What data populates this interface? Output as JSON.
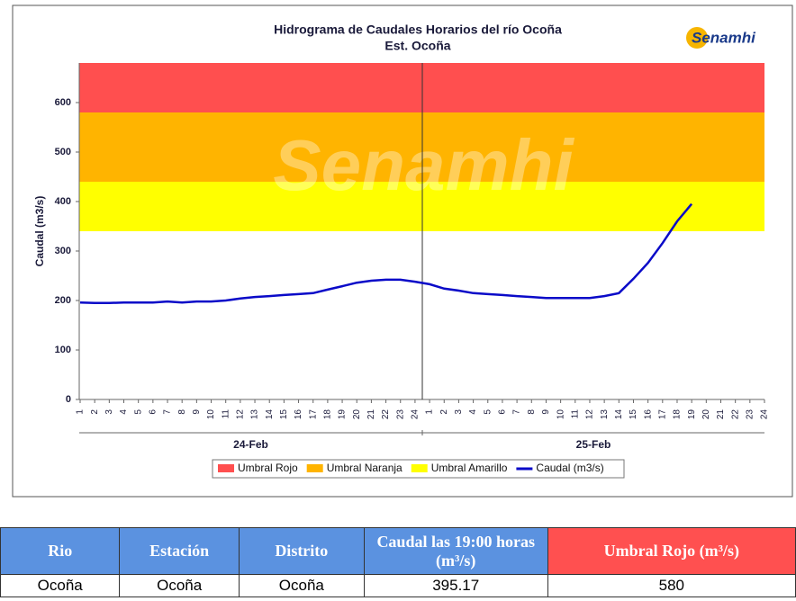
{
  "chart_data": {
    "type": "line",
    "title": "Hidrograma de Caudales Horarios del río Ocoña",
    "subtitle": "Est. Ocoña",
    "logo": "Senamhi",
    "watermark": "Senamhi",
    "y_label": "Caudal  (m3/s)",
    "categories": [
      1,
      2,
      3,
      4,
      5,
      6,
      7,
      8,
      9,
      10,
      11,
      12,
      13,
      14,
      15,
      16,
      17,
      18,
      19,
      20,
      21,
      22,
      23,
      24,
      1,
      2,
      3,
      4,
      5,
      6,
      7,
      8,
      9,
      10,
      11,
      12,
      13,
      14,
      15,
      16,
      17,
      18,
      19,
      20,
      21,
      22,
      23,
      24
    ],
    "groups": [
      {
        "label": "24-Feb",
        "span": [
          0,
          23
        ]
      },
      {
        "label": "25-Feb",
        "span": [
          24,
          47
        ]
      }
    ],
    "ylim": [
      0,
      680
    ],
    "yticks": [
      0,
      100,
      200,
      300,
      400,
      500,
      600
    ],
    "bands": [
      {
        "name": "Umbral Rojo",
        "color": "#ff4f4f",
        "range": [
          580,
          680
        ]
      },
      {
        "name": "Umbral Naranja",
        "color": "#ffb400",
        "range": [
          440,
          580
        ]
      },
      {
        "name": "Umbral Amarillo",
        "color": "#ffff00",
        "range": [
          340,
          440
        ]
      }
    ],
    "series": [
      {
        "name": "Caudal (m3/s)",
        "color": "#0a0ac8",
        "values": [
          196,
          195,
          195,
          196,
          196,
          196,
          198,
          196,
          198,
          198,
          200,
          204,
          207,
          209,
          211,
          213,
          215,
          222,
          229,
          236,
          240,
          242,
          242,
          238,
          233,
          224,
          220,
          215,
          213,
          211,
          209,
          207,
          205,
          205,
          205,
          205,
          209,
          215,
          244,
          276,
          316,
          360,
          395.17,
          null,
          null,
          null,
          null,
          null
        ]
      }
    ]
  },
  "table": {
    "header": [
      "Rio",
      "Estación",
      "Distrito",
      "Caudal las 19:00 horas (m³/s)",
      "Umbral Rojo (m³/s)"
    ],
    "rows": [
      [
        "Ocoña",
        "Ocoña",
        "Ocoña",
        "395.17",
        "580"
      ]
    ]
  }
}
